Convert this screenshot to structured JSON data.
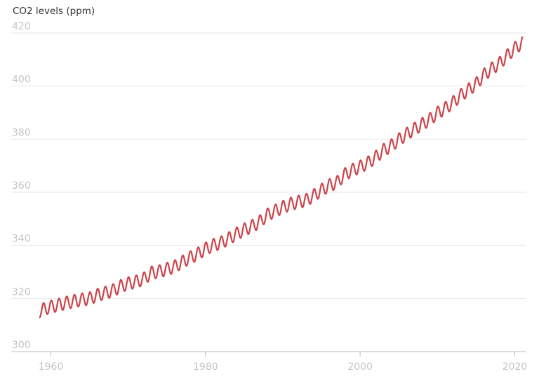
{
  "chart_data": {
    "type": "line",
    "title": "",
    "xlabel": "",
    "ylabel": "CO2 levels (ppm)",
    "xlim": [
      1958.5,
      2021.5
    ],
    "ylim": [
      300,
      420
    ],
    "x_ticks": [
      1960,
      1980,
      2000,
      2020
    ],
    "y_ticks": [
      300,
      320,
      340,
      360,
      380,
      400,
      420
    ],
    "grid": "horizontal",
    "legend": "none",
    "series": [
      {
        "color": "#cc444b",
        "x": [
          1958.5,
          1959,
          1960,
          1961,
          1962,
          1963,
          1964,
          1965,
          1966,
          1967,
          1968,
          1969,
          1970,
          1971,
          1972,
          1973,
          1974,
          1975,
          1976,
          1977,
          1978,
          1979,
          1980,
          1981,
          1982,
          1983,
          1984,
          1985,
          1986,
          1987,
          1988,
          1989,
          1990,
          1991,
          1992,
          1993,
          1994,
          1995,
          1996,
          1997,
          1998,
          1999,
          2000,
          2001,
          2002,
          2003,
          2004,
          2005,
          2006,
          2007,
          2008,
          2009,
          2010,
          2011,
          2012,
          2013,
          2014,
          2015,
          2016,
          2017,
          2018,
          2019,
          2020,
          2021
        ],
        "y": [
          315.2,
          315.9,
          316.9,
          317.6,
          318.4,
          319.0,
          319.6,
          320.0,
          321.3,
          322.1,
          323.0,
          324.6,
          325.7,
          326.3,
          327.4,
          329.7,
          330.2,
          331.1,
          332.0,
          333.8,
          335.4,
          336.8,
          338.7,
          340.1,
          341.0,
          342.6,
          344.4,
          345.9,
          347.2,
          348.9,
          351.5,
          353.0,
          354.4,
          355.6,
          356.4,
          357.0,
          358.8,
          360.8,
          362.6,
          363.7,
          366.7,
          368.4,
          369.6,
          371.1,
          373.2,
          375.8,
          377.5,
          379.8,
          381.9,
          383.8,
          385.6,
          387.4,
          389.9,
          391.6,
          393.8,
          396.5,
          398.6,
          400.8,
          404.2,
          406.5,
          408.5,
          411.4,
          414.2,
          416.4
        ],
        "seasonal_amplitude": 3.2
      }
    ]
  }
}
